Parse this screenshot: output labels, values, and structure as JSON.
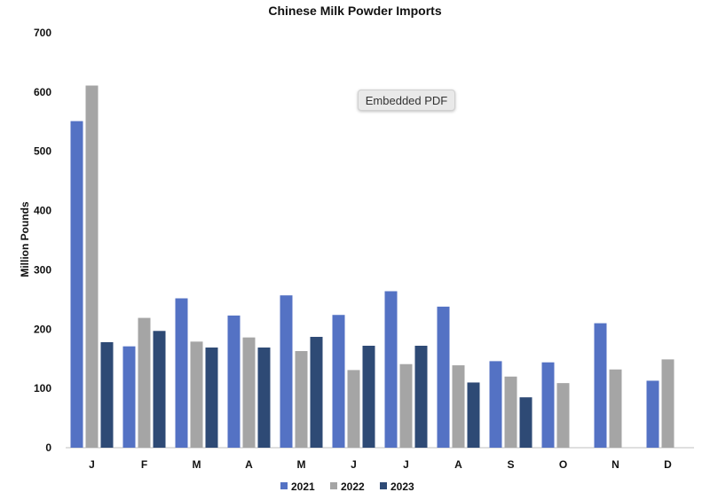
{
  "badge": {
    "label": "Embedded PDF"
  },
  "colors": {
    "2021": "#5472c4",
    "2022": "#a5a5a5",
    "2023": "#2e4a75",
    "axis": "#bfbfbf"
  },
  "chart_data": {
    "type": "bar",
    "title": "Chinese Milk Powder Imports",
    "xlabel": "",
    "ylabel": "Million Pounds",
    "ylim": [
      0,
      700
    ],
    "yticks": [
      0,
      100,
      200,
      300,
      400,
      500,
      600,
      700
    ],
    "grid": false,
    "legend": "bottom",
    "categories": [
      "J",
      "F",
      "M",
      "A",
      "M",
      "J",
      "J",
      "A",
      "S",
      "O",
      "N",
      "D"
    ],
    "series": [
      {
        "name": "2021",
        "values": [
          551,
          171,
          252,
          223,
          257,
          224,
          264,
          238,
          146,
          144,
          210,
          113
        ]
      },
      {
        "name": "2022",
        "values": [
          611,
          219,
          179,
          186,
          163,
          131,
          141,
          139,
          120,
          109,
          132,
          149
        ]
      },
      {
        "name": "2023",
        "values": [
          178,
          197,
          169,
          169,
          187,
          172,
          172,
          110,
          85,
          null,
          null,
          null
        ]
      }
    ]
  }
}
